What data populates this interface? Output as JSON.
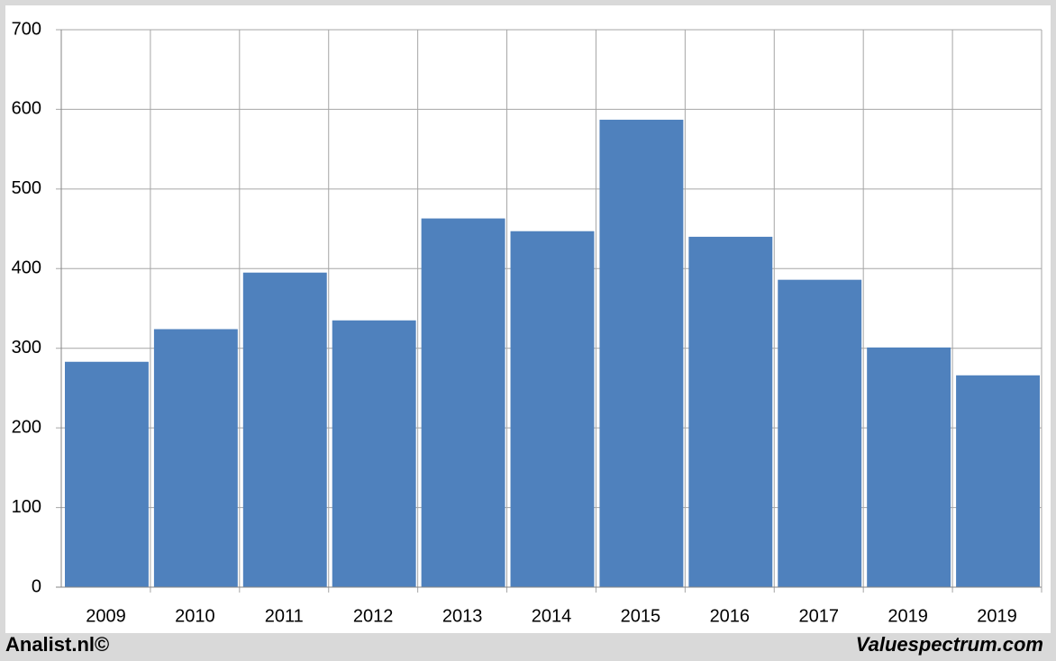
{
  "chart_data": {
    "type": "bar",
    "categories": [
      "2009",
      "2010",
      "2011",
      "2012",
      "2013",
      "2014",
      "2015",
      "2016",
      "2017",
      "2019",
      "2019"
    ],
    "values": [
      283,
      324,
      395,
      335,
      463,
      447,
      587,
      440,
      386,
      301,
      266
    ],
    "color": "#4f81bd",
    "ylim": [
      0,
      700
    ],
    "yticks": [
      0,
      100,
      200,
      300,
      400,
      500,
      600,
      700
    ],
    "grid": true,
    "footer_left": "Analist.nl©",
    "footer_right": "Valuespectrum.com"
  }
}
